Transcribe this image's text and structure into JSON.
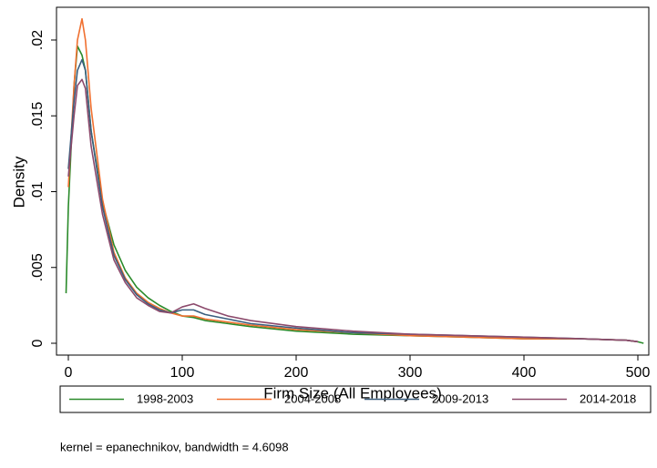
{
  "chart_data": {
    "type": "line",
    "y_label": "Density",
    "x_label": "Firm Size (All Employees)",
    "note": "kernel = epanechnikov, bandwidth = 4.6098",
    "x": [
      -2,
      0,
      5,
      8,
      12,
      15,
      20,
      30,
      40,
      50,
      60,
      70,
      80,
      90,
      100,
      110,
      120,
      140,
      160,
      200,
      250,
      300,
      350,
      400,
      450,
      490,
      500,
      505
    ],
    "series": [
      {
        "name": "1998-2003",
        "color": "#2a8a2a",
        "values": [
          0.0033,
          0.009,
          0.017,
          0.0196,
          0.019,
          0.018,
          0.014,
          0.0093,
          0.0065,
          0.0048,
          0.0037,
          0.003,
          0.0025,
          0.0021,
          0.0018,
          0.0017,
          0.0015,
          0.0013,
          0.0011,
          0.0008,
          0.0006,
          0.0005,
          0.0004,
          0.0003,
          0.0003,
          0.0002,
          0.0001,
          0
        ]
      },
      {
        "name": "2004-2008",
        "color": "#f07030",
        "values": [
          null,
          0.0103,
          0.017,
          0.02,
          0.0214,
          0.02,
          0.0155,
          0.0095,
          0.006,
          0.0043,
          0.0033,
          0.0027,
          0.0023,
          0.002,
          0.0018,
          0.0018,
          0.0016,
          0.0014,
          0.0012,
          0.0009,
          0.0007,
          0.0005,
          0.0004,
          0.0003,
          0.0003,
          0.0002,
          0.0001,
          null
        ]
      },
      {
        "name": "2009-2013",
        "color": "#3a5e7e",
        "values": [
          null,
          0.0115,
          0.016,
          0.018,
          0.0187,
          0.018,
          0.014,
          0.009,
          0.0058,
          0.0042,
          0.0032,
          0.0026,
          0.0022,
          0.002,
          0.0022,
          0.0022,
          0.0019,
          0.0016,
          0.0013,
          0.001,
          0.0007,
          0.0006,
          0.0005,
          0.0004,
          0.0003,
          0.0002,
          0.0001,
          null
        ]
      },
      {
        "name": "2014-2018",
        "color": "#8c4a6c",
        "values": [
          null,
          0.011,
          0.015,
          0.017,
          0.0174,
          0.0168,
          0.013,
          0.0085,
          0.0055,
          0.004,
          0.003,
          0.0025,
          0.0021,
          0.002,
          0.0024,
          0.0026,
          0.0023,
          0.0018,
          0.0015,
          0.0011,
          0.0008,
          0.0006,
          0.0005,
          0.0004,
          0.0003,
          0.0002,
          0.0001,
          null
        ]
      }
    ],
    "xlim": [
      -10.4,
      509.6
    ],
    "ylim": [
      -0.00078,
      0.02216
    ],
    "xticks": [
      0,
      100,
      200,
      300,
      400,
      500
    ],
    "yticks": [
      0,
      {
        "value": 0.005,
        "label": ".005"
      },
      {
        "value": 0.01,
        "label": ".01"
      },
      {
        "value": 0.015,
        "label": ".015"
      },
      {
        "value": 0.02,
        "label": ".02"
      }
    ],
    "grid": false,
    "legend": "bottom"
  }
}
